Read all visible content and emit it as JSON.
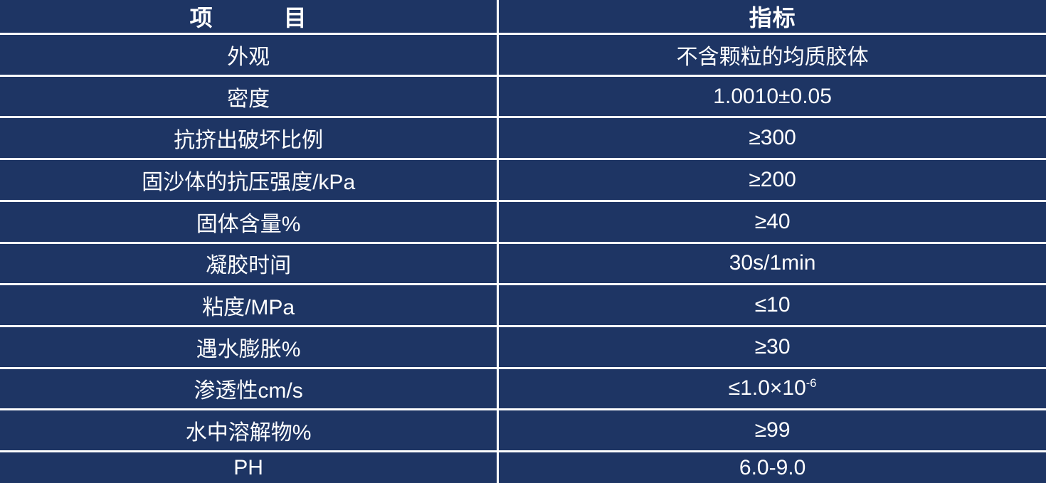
{
  "table": {
    "background_color": "#1e3564",
    "grid_color": "#ffffff",
    "text_color": "#ffffff",
    "header": {
      "item": "项　　　目",
      "indicator": "指标"
    },
    "rows": [
      {
        "item": "外观",
        "value": "不含颗粒的均质胶体",
        "value_sup": ""
      },
      {
        "item": "密度",
        "value": "1.0010±0.05",
        "value_sup": ""
      },
      {
        "item": "抗挤出破坏比例",
        "value": "≥300",
        "value_sup": ""
      },
      {
        "item": "固沙体的抗压强度/kPa",
        "value": "≥200",
        "value_sup": ""
      },
      {
        "item": "固体含量%",
        "value": "≥40",
        "value_sup": ""
      },
      {
        "item": "凝胶时间",
        "value": "30s/1min",
        "value_sup": ""
      },
      {
        "item": "粘度/MPa",
        "value": "≤10",
        "value_sup": ""
      },
      {
        "item": "遇水膨胀%",
        "value": "≥30",
        "value_sup": ""
      },
      {
        "item": "渗透性cm/s",
        "value": "≤1.0×10",
        "value_sup": "-6"
      },
      {
        "item": "水中溶解物%",
        "value": "≥99",
        "value_sup": ""
      },
      {
        "item": "PH",
        "value": "6.0-9.0",
        "value_sup": ""
      }
    ]
  },
  "chart_data": {
    "type": "table",
    "title": "",
    "columns": [
      "项目",
      "指标"
    ],
    "rows": [
      [
        "外观",
        "不含颗粒的均质胶体"
      ],
      [
        "密度",
        "1.0010±0.05"
      ],
      [
        "抗挤出破坏比例",
        "≥300"
      ],
      [
        "固沙体的抗压强度/kPa",
        "≥200"
      ],
      [
        "固体含量%",
        "≥40"
      ],
      [
        "凝胶时间",
        "30s/1min"
      ],
      [
        "粘度/MPa",
        "≤10"
      ],
      [
        "遇水膨胀%",
        "≥30"
      ],
      [
        "渗透性cm/s",
        "≤1.0×10⁻⁶"
      ],
      [
        "水中溶解物%",
        "≥99"
      ],
      [
        "PH",
        "6.0-9.0"
      ]
    ],
    "layout": {
      "header_bold": true,
      "grid": true,
      "outer_border": false,
      "column_split_percent": 47.6
    }
  }
}
